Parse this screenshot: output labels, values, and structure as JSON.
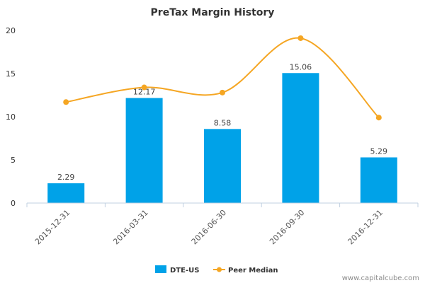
{
  "chart_data": {
    "type": "bar",
    "title": "PreTax Margin History",
    "categories": [
      "2015-12-31",
      "2016-03-31",
      "2016-06-30",
      "2016-09-30",
      "2016-12-31"
    ],
    "series": [
      {
        "name": "DTE-US",
        "type": "bar",
        "color": "#00a2e8",
        "values": [
          2.29,
          12.17,
          8.58,
          15.06,
          5.29
        ],
        "labels": [
          "2.29",
          "12.17",
          "8.58",
          "15.06",
          "5.29"
        ]
      },
      {
        "name": "Peer Median",
        "type": "line",
        "color": "#f5a623",
        "values": [
          11.7,
          13.4,
          12.8,
          19.1,
          9.9
        ]
      }
    ],
    "ylim": [
      0,
      20
    ],
    "yticks": [
      "0",
      "5",
      "10",
      "15",
      "20"
    ],
    "grid": false,
    "legend": "bottom-center"
  },
  "credit": "www.capitalcube.com"
}
